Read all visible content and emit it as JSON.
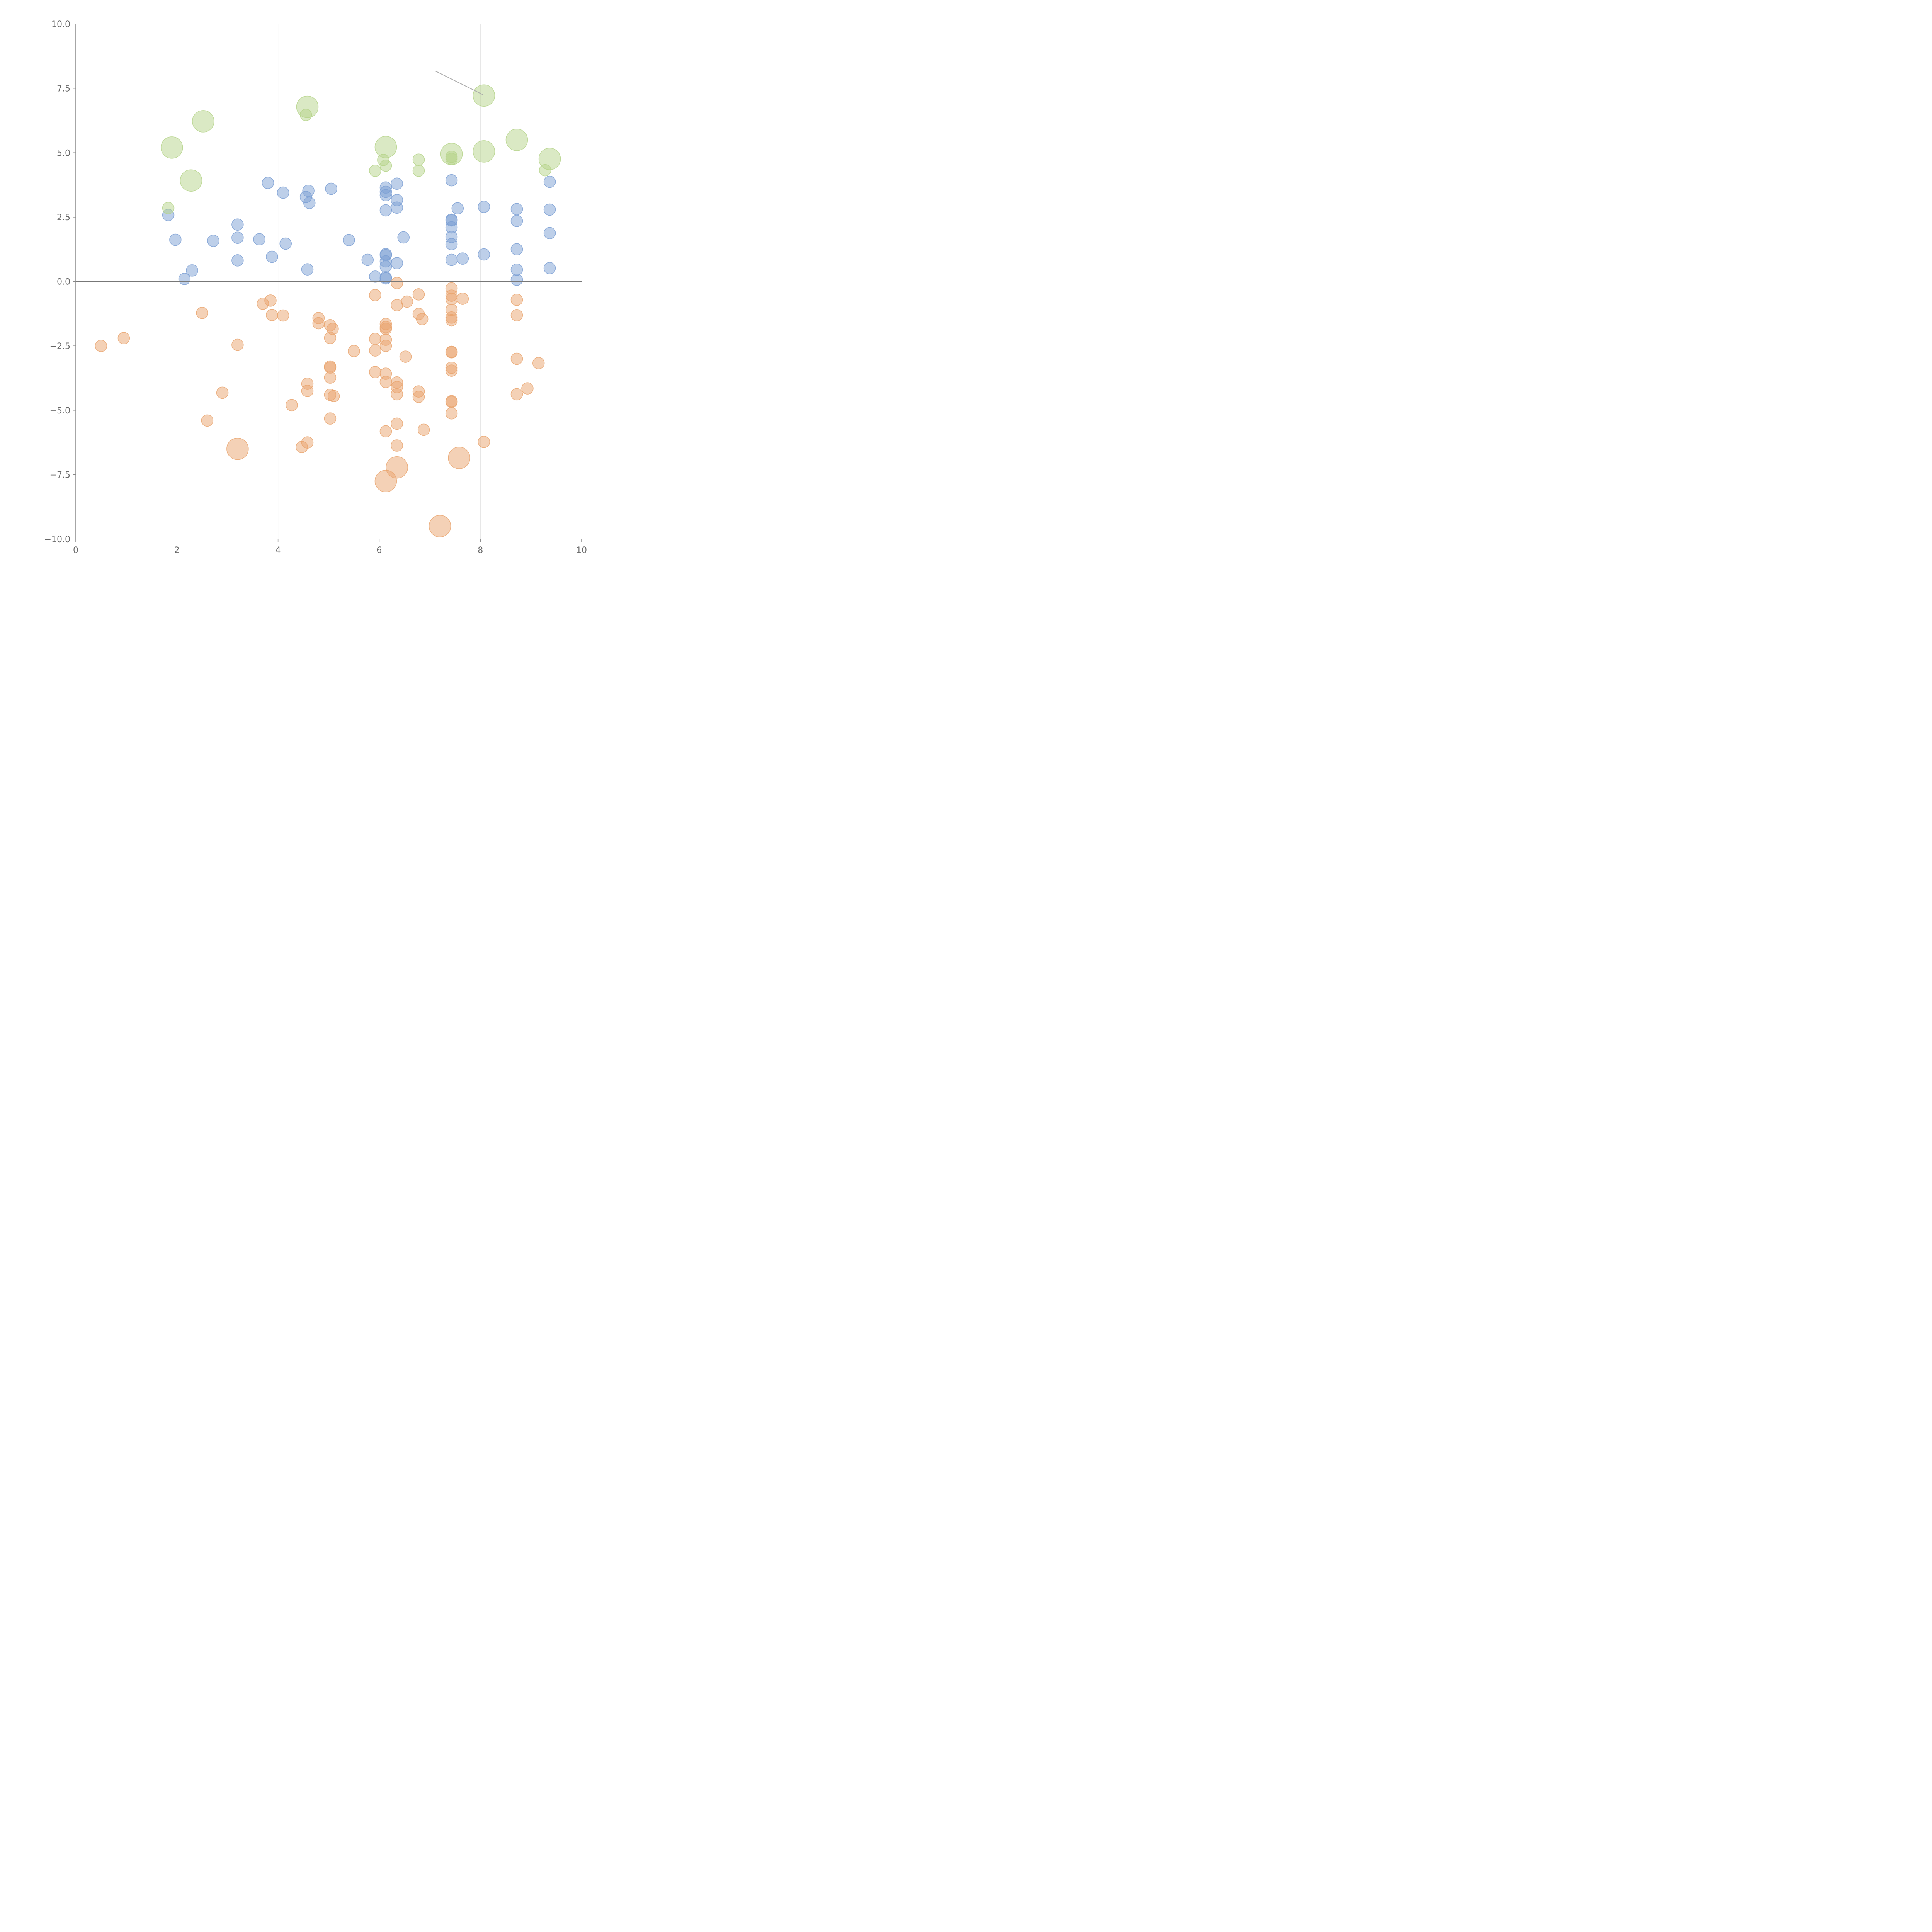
{
  "chart_data": {
    "type": "scatter",
    "x_axis": {
      "min": 0,
      "max": 10,
      "ticks": [
        0,
        2,
        4,
        6,
        8,
        10
      ],
      "tick_labels": [
        "0",
        "2",
        "4",
        "6",
        "8",
        "10"
      ]
    },
    "y_axis": {
      "min": -10,
      "max": 10,
      "ticks": [
        -10,
        -7.5,
        -5,
        -2.5,
        0,
        2.5,
        5,
        7.5,
        10
      ],
      "tick_labels": [
        "−10.0",
        "−7.5",
        "−5.0",
        "−2.5",
        "0.0",
        "2.5",
        "5.0",
        "7.5",
        "10.0"
      ]
    },
    "grid": {
      "vertical": true,
      "horizontal": false
    },
    "zero_line": true,
    "series": [
      {
        "color": "#7b9fd4",
        "points": [
          [
            1.83,
            2.58
          ],
          [
            1.97,
            1.62
          ],
          [
            2.15,
            0.1
          ],
          [
            2.3,
            0.43
          ],
          [
            2.72,
            1.58
          ],
          [
            3.2,
            2.21
          ],
          [
            3.2,
            1.7
          ],
          [
            3.2,
            0.82
          ],
          [
            3.63,
            1.64
          ],
          [
            3.8,
            3.83
          ],
          [
            3.88,
            0.96
          ],
          [
            4.1,
            3.45
          ],
          [
            4.15,
            1.47
          ],
          [
            4.55,
            3.28
          ],
          [
            4.6,
            3.52
          ],
          [
            4.62,
            3.05
          ],
          [
            4.58,
            0.47
          ],
          [
            5.05,
            3.6
          ],
          [
            5.4,
            1.61
          ],
          [
            5.77,
            0.84
          ],
          [
            5.92,
            0.19
          ],
          [
            6.13,
            3.65
          ],
          [
            6.13,
            3.48
          ],
          [
            6.13,
            3.35
          ],
          [
            6.13,
            2.76
          ],
          [
            6.13,
            1.06
          ],
          [
            6.13,
            1.02
          ],
          [
            6.13,
            0.78
          ],
          [
            6.13,
            0.58
          ],
          [
            6.13,
            0.16
          ],
          [
            6.13,
            0.12
          ],
          [
            6.35,
            3.8
          ],
          [
            6.35,
            3.16
          ],
          [
            6.35,
            2.87
          ],
          [
            6.35,
            0.71
          ],
          [
            6.48,
            1.71
          ],
          [
            7.43,
            3.93
          ],
          [
            7.43,
            2.4
          ],
          [
            7.43,
            2.37
          ],
          [
            7.43,
            2.1
          ],
          [
            7.43,
            1.73
          ],
          [
            7.43,
            1.45
          ],
          [
            7.43,
            0.84
          ],
          [
            7.55,
            2.84
          ],
          [
            7.65,
            0.89
          ],
          [
            8.07,
            2.9
          ],
          [
            8.07,
            1.05
          ],
          [
            8.72,
            2.81
          ],
          [
            8.72,
            2.35
          ],
          [
            8.72,
            1.25
          ],
          [
            8.72,
            0.46
          ],
          [
            8.72,
            0.07
          ],
          [
            9.37,
            3.87
          ],
          [
            9.37,
            2.79
          ],
          [
            9.37,
            1.88
          ],
          [
            9.37,
            0.52
          ]
        ]
      },
      {
        "color": "#e9a46e",
        "points": [
          [
            0.5,
            -2.5
          ],
          [
            0.95,
            -2.2
          ],
          [
            2.5,
            -1.22
          ],
          [
            2.6,
            -5.4
          ],
          [
            2.9,
            -4.32
          ],
          [
            3.2,
            -2.46
          ],
          [
            3.2,
            -6.5
          ],
          [
            3.7,
            -0.86
          ],
          [
            3.85,
            -0.74
          ],
          [
            3.88,
            -1.3
          ],
          [
            4.1,
            -1.32
          ],
          [
            4.27,
            -4.8
          ],
          [
            4.47,
            -6.43
          ],
          [
            4.58,
            -3.97
          ],
          [
            4.58,
            -4.25
          ],
          [
            4.58,
            -6.25
          ],
          [
            4.8,
            -1.42
          ],
          [
            4.8,
            -1.62
          ],
          [
            5.03,
            -1.7
          ],
          [
            5.08,
            -1.84
          ],
          [
            5.03,
            -2.19
          ],
          [
            5.03,
            -3.3
          ],
          [
            5.03,
            -3.34
          ],
          [
            5.03,
            -3.73
          ],
          [
            5.03,
            -4.4
          ],
          [
            5.1,
            -4.45
          ],
          [
            5.03,
            -5.32
          ],
          [
            5.5,
            -2.7
          ],
          [
            5.92,
            -0.53
          ],
          [
            5.92,
            -2.23
          ],
          [
            5.92,
            -2.68
          ],
          [
            5.92,
            -3.52
          ],
          [
            6.13,
            -1.65
          ],
          [
            6.13,
            -1.77
          ],
          [
            6.13,
            -1.84
          ],
          [
            6.13,
            -2.26
          ],
          [
            6.13,
            -2.5
          ],
          [
            6.13,
            -3.58
          ],
          [
            6.13,
            -3.9
          ],
          [
            6.13,
            -5.82
          ],
          [
            6.13,
            -7.75
          ],
          [
            6.35,
            -0.06
          ],
          [
            6.35,
            -0.92
          ],
          [
            6.35,
            -3.92
          ],
          [
            6.35,
            -4.1
          ],
          [
            6.35,
            -4.38
          ],
          [
            6.35,
            -5.52
          ],
          [
            6.35,
            -6.37
          ],
          [
            6.35,
            -7.22
          ],
          [
            6.55,
            -0.78
          ],
          [
            6.52,
            -2.92
          ],
          [
            6.78,
            -0.5
          ],
          [
            6.78,
            -1.26
          ],
          [
            6.85,
            -1.46
          ],
          [
            6.78,
            -4.27
          ],
          [
            6.78,
            -4.48
          ],
          [
            6.88,
            -5.76
          ],
          [
            7.2,
            -9.5
          ],
          [
            7.43,
            -0.27
          ],
          [
            7.43,
            -0.55
          ],
          [
            7.43,
            -0.68
          ],
          [
            7.43,
            -1.1
          ],
          [
            7.43,
            -1.4
          ],
          [
            7.43,
            -1.5
          ],
          [
            7.43,
            -2.73
          ],
          [
            7.43,
            -2.75
          ],
          [
            7.43,
            -3.35
          ],
          [
            7.43,
            -3.46
          ],
          [
            7.43,
            -4.65
          ],
          [
            7.43,
            -4.68
          ],
          [
            7.43,
            -5.12
          ],
          [
            7.58,
            -6.85
          ],
          [
            7.65,
            -0.67
          ],
          [
            8.07,
            -6.23
          ],
          [
            8.72,
            -0.71
          ],
          [
            8.72,
            -1.31
          ],
          [
            8.72,
            -3.0
          ],
          [
            8.72,
            -4.38
          ],
          [
            8.93,
            -4.15
          ],
          [
            9.15,
            -3.17
          ]
        ]
      },
      {
        "color": "#b5d38a",
        "points": [
          [
            1.83,
            2.85
          ],
          [
            1.9,
            5.2
          ],
          [
            2.28,
            3.92
          ],
          [
            2.52,
            6.22
          ],
          [
            4.55,
            6.47
          ],
          [
            4.58,
            6.78
          ],
          [
            5.92,
            4.3
          ],
          [
            6.08,
            4.72
          ],
          [
            6.13,
            4.5
          ],
          [
            6.13,
            5.22
          ],
          [
            6.78,
            4.73
          ],
          [
            6.78,
            4.3
          ],
          [
            7.43,
            4.95
          ],
          [
            7.43,
            4.84
          ],
          [
            7.43,
            4.76
          ],
          [
            8.07,
            5.05
          ],
          [
            8.07,
            7.22
          ],
          [
            8.72,
            5.5
          ],
          [
            9.28,
            4.32
          ],
          [
            9.37,
            4.76
          ]
        ]
      }
    ]
  }
}
